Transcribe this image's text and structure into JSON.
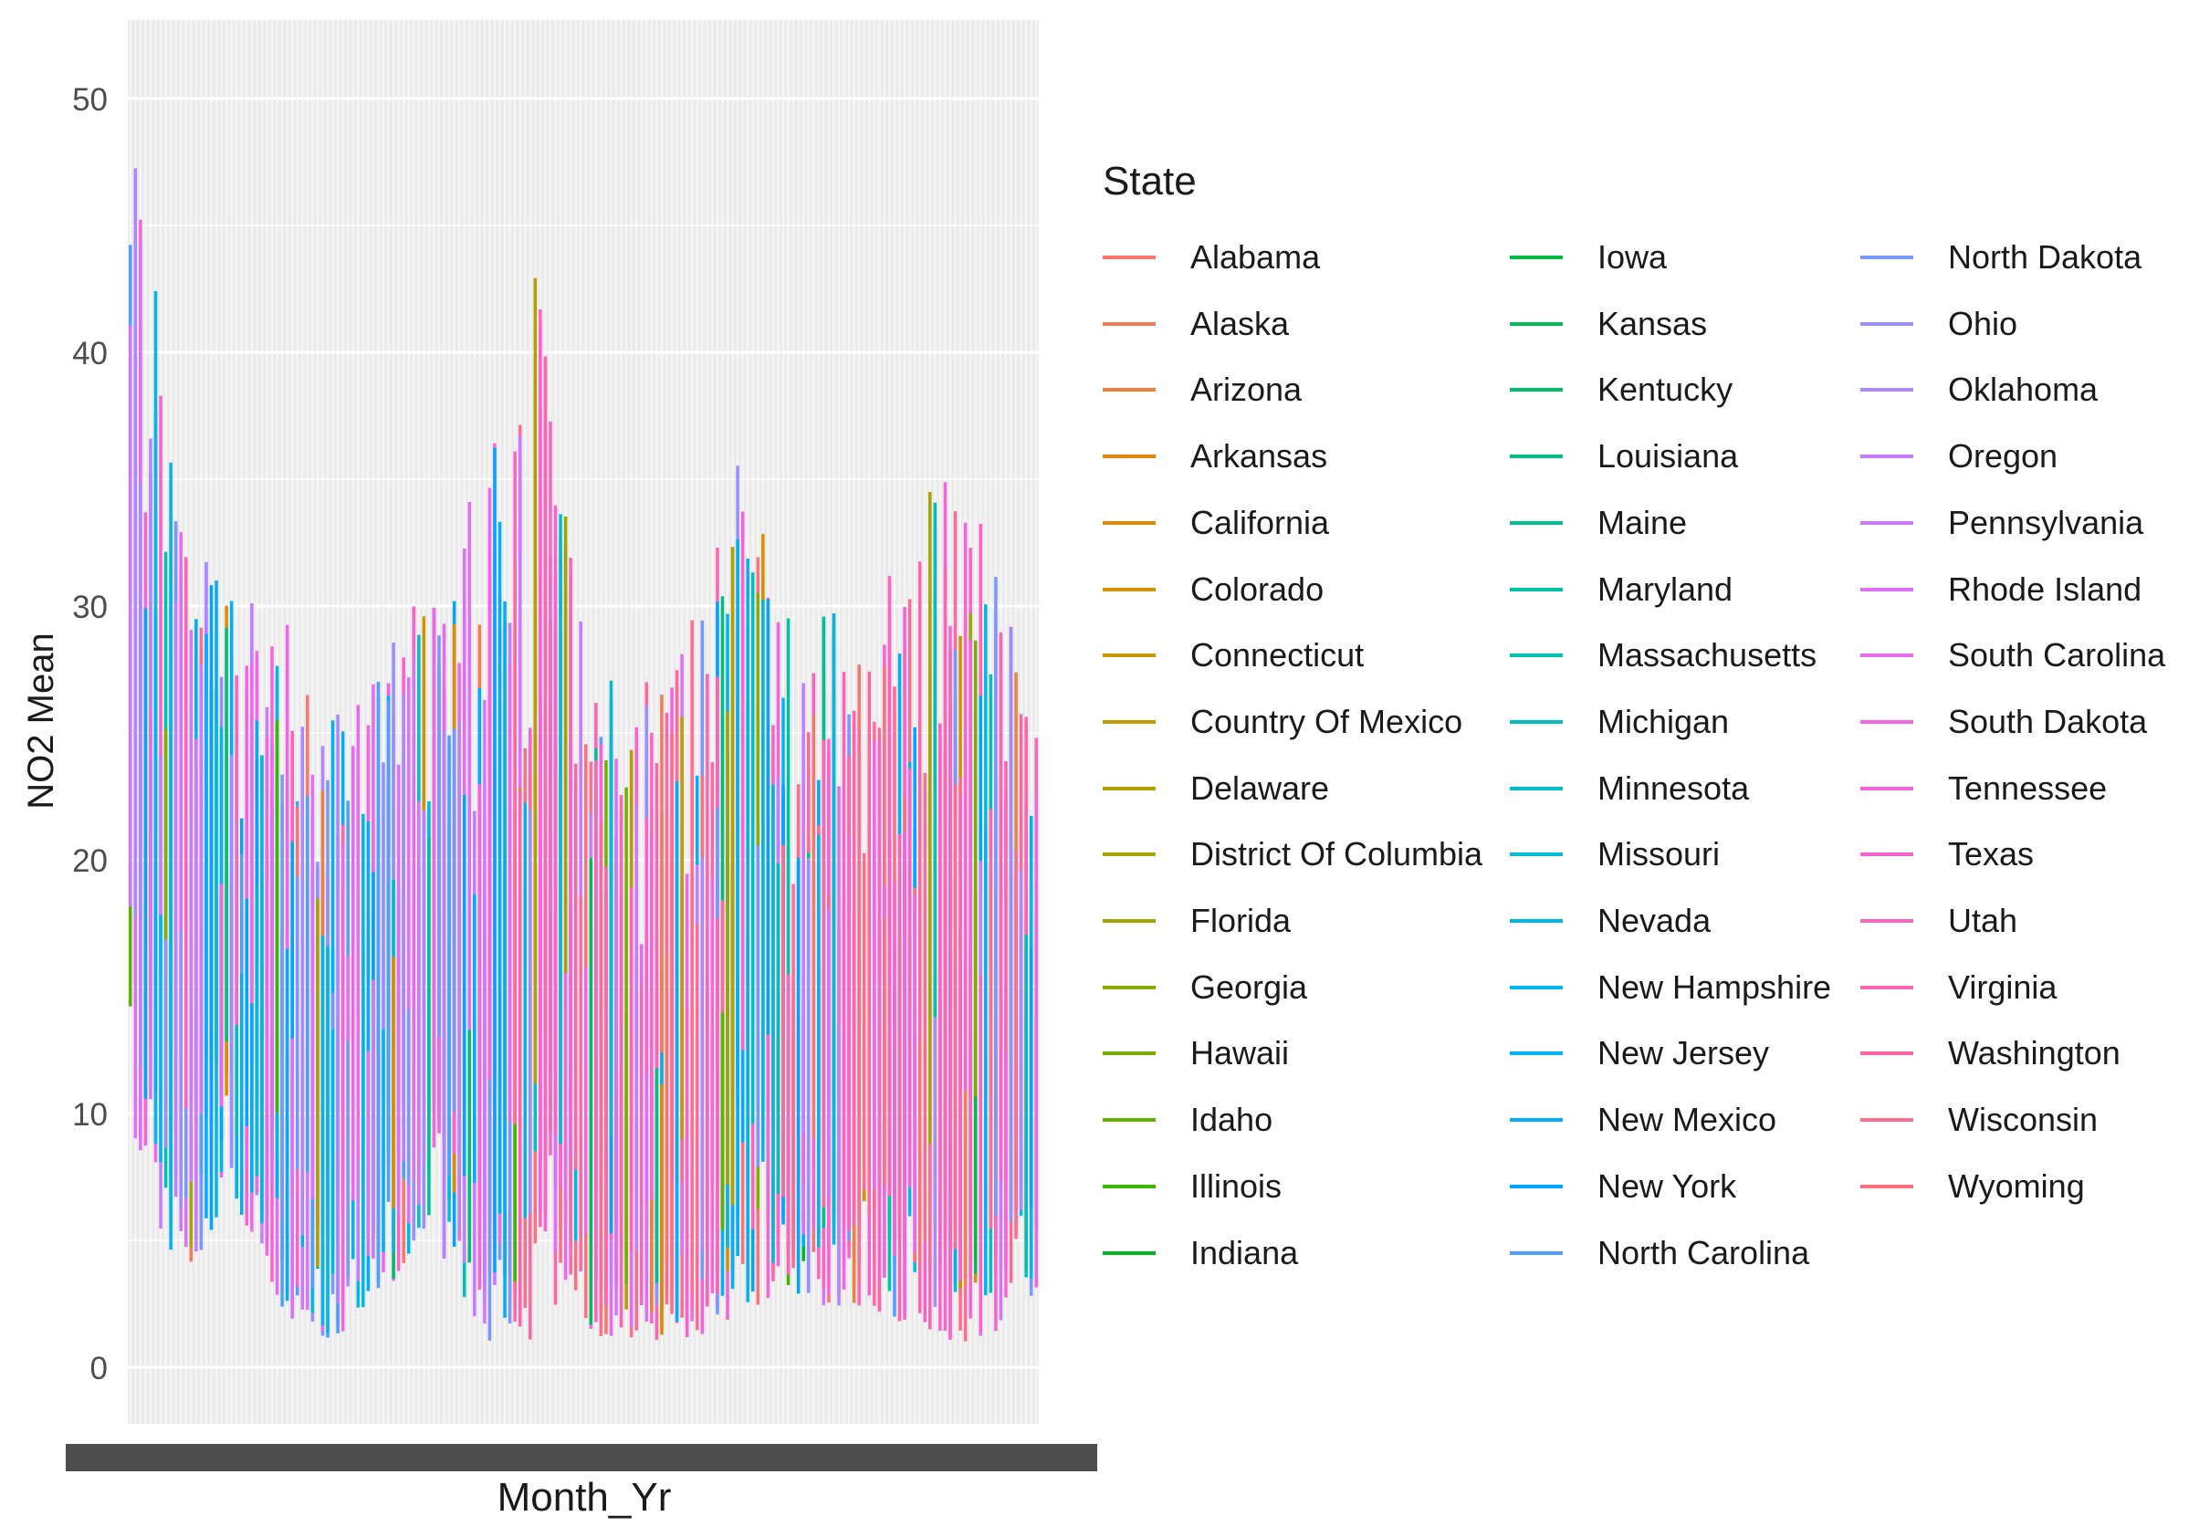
{
  "chart_data": {
    "type": "bar",
    "title": "",
    "xlabel": "Month_Yr",
    "ylabel": "NO2 Mean",
    "ylim": [
      -3,
      53
    ],
    "y_ticks": [
      0,
      10,
      20,
      30,
      40,
      50
    ],
    "x_tick_labels_note": "dense overlapping month-year tick labels (illegible)",
    "grid": true,
    "background": "#ebebeb",
    "legend": {
      "title": "State",
      "position": "right",
      "columns": 3
    },
    "states": [
      "Alabama",
      "Alaska",
      "Arizona",
      "Arkansas",
      "California",
      "Colorado",
      "Connecticut",
      "Country Of Mexico",
      "Delaware",
      "District Of Columbia",
      "Florida",
      "Georgia",
      "Hawaii",
      "Idaho",
      "Illinois",
      "Indiana",
      "Iowa",
      "Kansas",
      "Kentucky",
      "Louisiana",
      "Maine",
      "Maryland",
      "Massachusetts",
      "Michigan",
      "Minnesota",
      "Missouri",
      "Nevada",
      "New Hampshire",
      "New Jersey",
      "New Mexico",
      "New York",
      "North Carolina",
      "North Dakota",
      "Ohio",
      "Oklahoma",
      "Oregon",
      "Pennsylvania",
      "Rhode Island",
      "South Carolina",
      "South Dakota",
      "Tennessee",
      "Texas",
      "Utah",
      "Virginia",
      "Washington",
      "Wisconsin",
      "Wyoming"
    ],
    "n_months": 180,
    "range_envelope": {
      "month_index": [
        0,
        10,
        20,
        30,
        40,
        50,
        60,
        70,
        80,
        90,
        100,
        110,
        120,
        130,
        140,
        150,
        160,
        170,
        179
      ],
      "max": [
        51,
        34,
        31,
        30,
        26,
        28,
        32,
        35,
        44,
        28,
        27,
        29,
        36,
        30,
        31,
        32,
        36,
        33,
        25
      ],
      "min": [
        9,
        3,
        7,
        2,
        1,
        3,
        5,
        1,
        1,
        1,
        1,
        1,
        2,
        3,
        2,
        2,
        1,
        1,
        3
      ]
    }
  }
}
